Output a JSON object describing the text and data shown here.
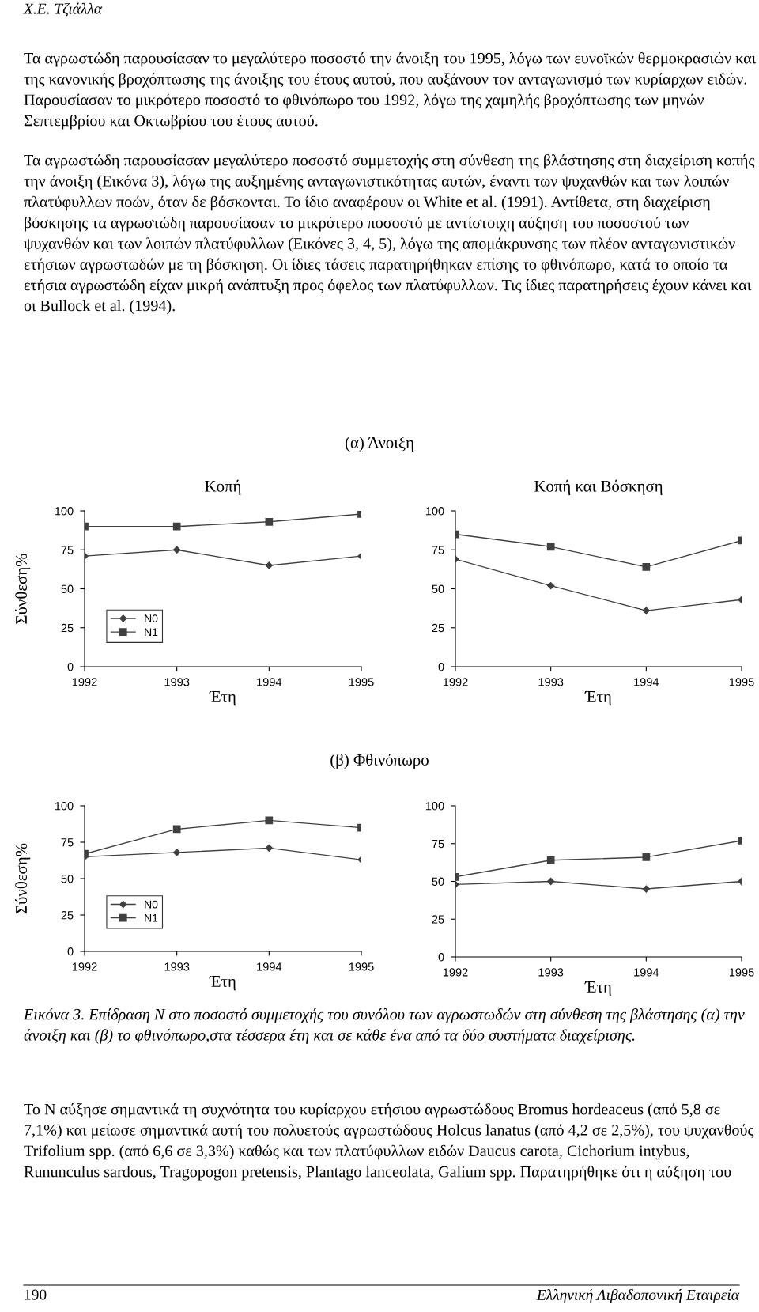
{
  "chart_data": [
    {
      "type": "line",
      "title": "Κοπή",
      "xlabel": "Έτη",
      "ylabel": "Σύνθεση%",
      "x": [
        1992,
        1993,
        1994,
        1995
      ],
      "xlim": [
        1992,
        1995
      ],
      "xticks": [
        1992,
        1993,
        1994,
        1995
      ],
      "ylim": [
        0,
        100
      ],
      "yticks": [
        0,
        25,
        50,
        75,
        100
      ],
      "grid": false,
      "legend": "lower left",
      "series": [
        {
          "name": "N0",
          "color": "#404040",
          "marker": "diamond",
          "values": [
            71,
            75,
            65,
            71
          ]
        },
        {
          "name": "N1",
          "color": "#404040",
          "marker": "square",
          "values": [
            90,
            90,
            93,
            98
          ]
        }
      ],
      "annotations": [
        "Χ.Ε. Τζιάλλα",
        "Τα αγρωστώδη παρουσίασαν το μεγαλύτερο ποσοστό την άνοιξη του 1995, λόγω των ευνοϊκών θερμοκρασιών και της κανονικής βροχόπτωσης της άνοιξης του έτους αυτού, που αυξάνουν τον ανταγωνισμό των κυρίαρχων ειδών. Παρουσίασαν το μικρότερο ποσοστό το φθινόπωρο του 1992, λόγω της χαμηλής βροχόπτωσης των μηνών Σεπτεμβρίου και Οκτωβρίου του έτους αυτού.",
        "Τα αγρωστώδη παρουσίασαν μεγαλύτερο ποσοστό συμμετοχής στη σύνθεση της βλάστησης στη διαχείριση κοπής την άνοιξη (Εικόνα 3), λόγω της αυξημένης ανταγωνιστικότητας αυτών, έναντι των ψυχανθών και των λοιπών πλατύφυλλων ποών, όταν δε βόσκονται. Το ίδιο αναφέρουν οι White et al. (1991). Αντίθετα, στη διαχείριση βόσκησης τα αγρωστώδη παρουσίασαν το μικρότερο ποσοστό με αντίστοιχη αύξηση του ποσοστού των ψυχανθών και των λοιπών πλατύφυλλων (Εικόνες 3, 4, 5), λόγω της απομάκρυνσης των πλέον ανταγωνιστικών ετήσιων αγρωστωδών με τη βόσκηση. Οι ίδιες τάσεις παρατηρήθηκαν επίσης το φθινόπωρο, κατά το οποίο τα ετήσια αγρωστώδη είχαν μικρή ανάπτυξη προς όφελος των πλατύφυλλων. Τις ίδιες παρατηρήσεις έχουν κάνει και οι Bullock et al. (1994).",
        "(α) Άνοιξη"
      ]
    },
    {
      "type": "line",
      "title": "Κοπή και Βόσκηση",
      "xlabel": "Έτη",
      "x": [
        1992,
        1993,
        1994,
        1995
      ],
      "xlim": [
        1992,
        1995
      ],
      "xticks": [
        1992,
        1993,
        1994,
        1995
      ],
      "ylim": [
        0,
        100
      ],
      "yticks": [
        0,
        25,
        50,
        75,
        100
      ],
      "grid": false,
      "series": [
        {
          "color": "#404040",
          "marker": "diamond",
          "values": [
            69,
            52,
            36,
            43
          ]
        },
        {
          "color": "#404040",
          "marker": "square",
          "values": [
            85,
            77,
            64,
            81
          ]
        }
      ]
    },
    {
      "type": "line",
      "xlabel": "Έτη",
      "ylabel": "Σύνθεση%",
      "x": [
        1992,
        1993,
        1994,
        1995
      ],
      "xlim": [
        1992,
        1995
      ],
      "xticks": [
        1992,
        1993,
        1994,
        1995
      ],
      "ylim": [
        0,
        100
      ],
      "yticks": [
        0,
        25,
        50,
        75,
        100
      ],
      "grid": false,
      "legend": "lower left",
      "series": [
        {
          "name": "N0",
          "color": "#404040",
          "marker": "diamond",
          "values": [
            65,
            68,
            71,
            63
          ]
        },
        {
          "name": "N1",
          "color": "#404040",
          "marker": "square",
          "values": [
            67,
            84,
            90,
            85
          ]
        }
      ],
      "annotations": [
        "(β) Φθινόπωρο"
      ]
    },
    {
      "type": "line",
      "xlabel": "Έτη",
      "x": [
        1992,
        1993,
        1994,
        1995
      ],
      "xlim": [
        1992,
        1995
      ],
      "xticks": [
        1992,
        1993,
        1994,
        1995
      ],
      "ylim": [
        0,
        100
      ],
      "yticks": [
        0,
        25,
        50,
        75,
        100
      ],
      "grid": false,
      "series": [
        {
          "color": "#404040",
          "marker": "diamond",
          "values": [
            48,
            50,
            45,
            50
          ]
        },
        {
          "color": "#404040",
          "marker": "square",
          "values": [
            53,
            64,
            66,
            77
          ]
        }
      ],
      "annotations": [
        "Εικόνα 3. Επίδραση Ν στο ποσοστό συμμετοχής του συνόλου των αγρωστωδών στη σύνθεση της βλάστησης (α) την άνοιξη και (β) το φθινόπωρο,στα τέσσερα έτη και σε κάθε ένα από τα δύο συστήματα διαχείρισης.",
        "Το Ν αύξησε σημαντικά τη συχνότητα του κυρίαρχου ετήσιου αγρωστώδους Bromus hordeaceus (από 5,8 σε 7,1%) και μείωσε σημαντικά αυτή του πολυετούς αγρωστώδους Holcus lanatus (από 4,2 σε 2,5%), του ψυχανθούς Trifolium spp. (από 6,6 σε 3,3%) καθώς και των πλατύφυλλων ειδών Daucus carota, Cichorium intybus, Rununculus sardous, Tragopogon pretensis, Plantago lanceolata, Galium spp. Παρατηρήθηκε ότι η αύξηση του",
        "190",
        "Ελληνική Λιβαδοπονική Εταιρεία"
      ]
    }
  ]
}
